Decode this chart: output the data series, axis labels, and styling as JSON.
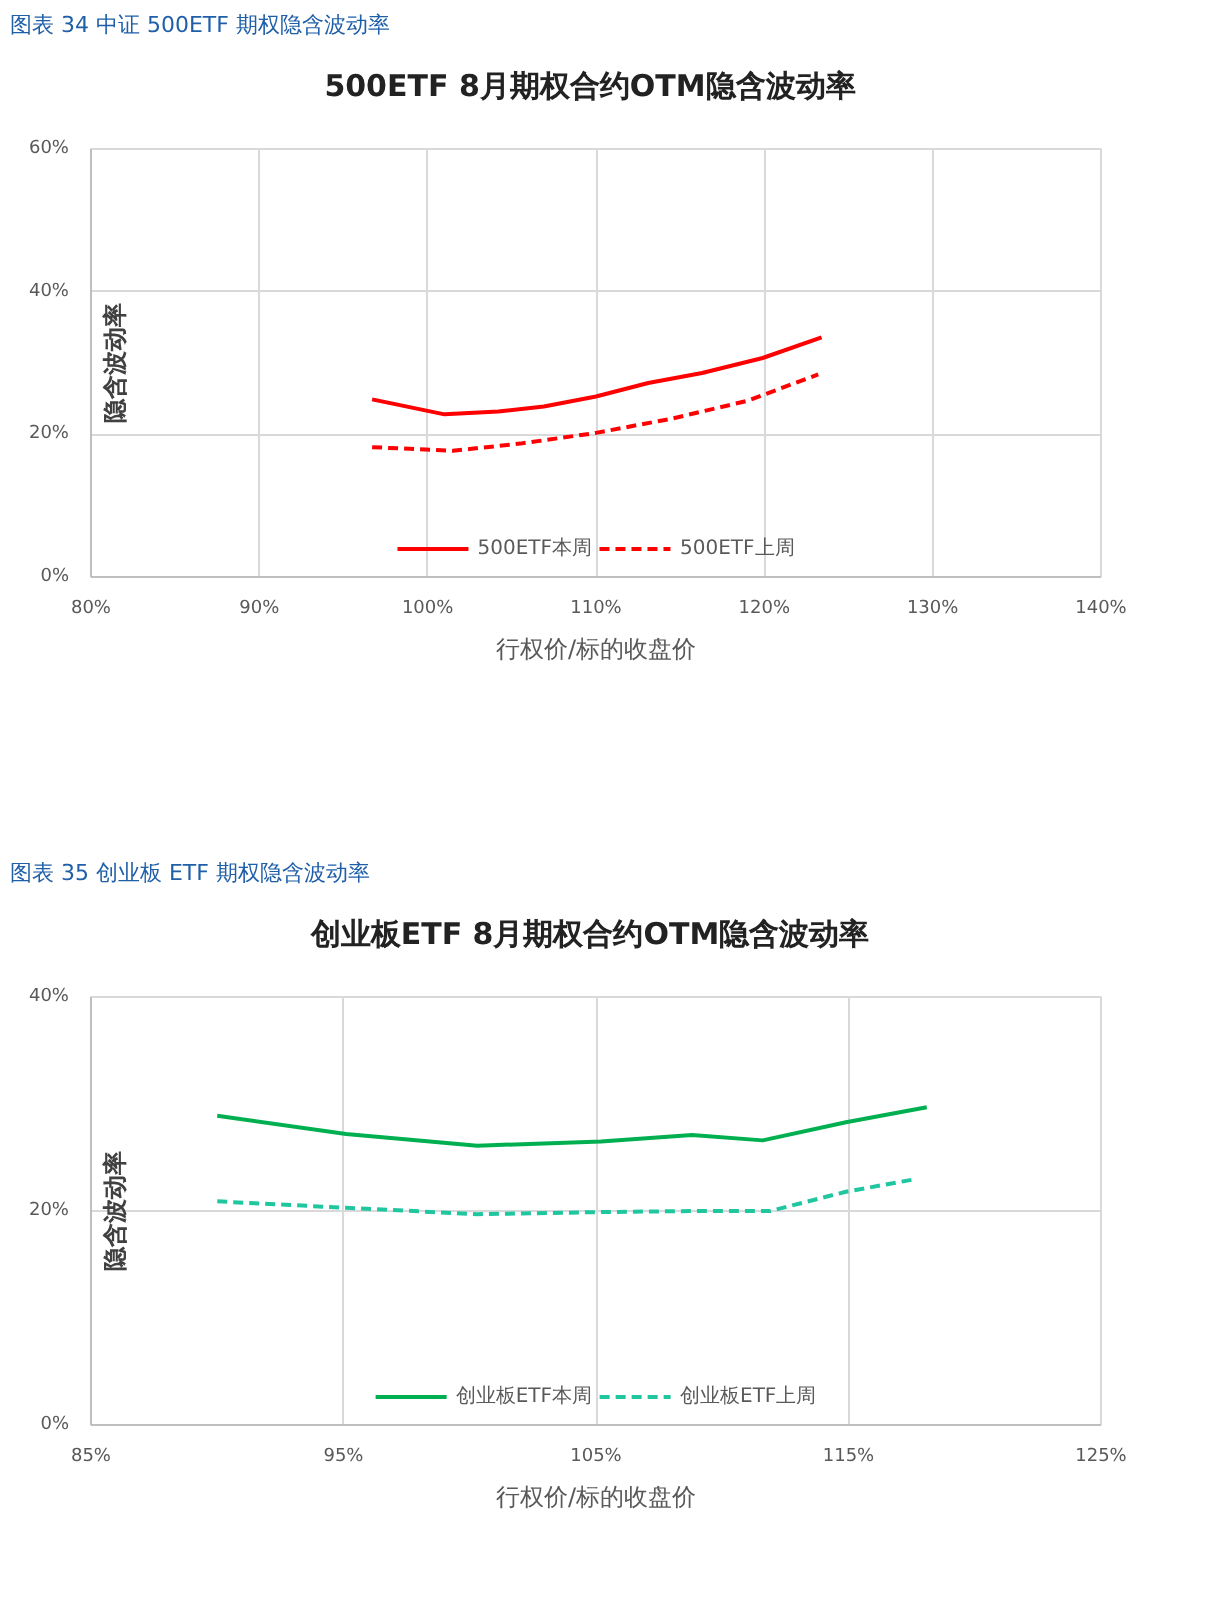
{
  "chart_data": [
    {
      "type": "line",
      "subtitle": "图表 34  中证 500ETF 期权隐含波动率",
      "title": "500ETF 8月期权合约OTM隐含波动率",
      "xlabel": "行权价/标的收盘价",
      "ylabel": "隐含波动率",
      "xlim": [
        80,
        140
      ],
      "xticks": [
        {
          "value": 80,
          "label": "80%"
        },
        {
          "value": 90,
          "label": "90%"
        },
        {
          "value": 100,
          "label": "100%"
        },
        {
          "value": 110,
          "label": "110%"
        },
        {
          "value": 120,
          "label": "120%"
        },
        {
          "value": 130,
          "label": "130%"
        },
        {
          "value": 140,
          "label": "140%"
        }
      ],
      "ylim": [
        0,
        60
      ],
      "yticks": [
        {
          "value": 0,
          "label": "0%"
        },
        {
          "value": 20,
          "label": "20%"
        },
        {
          "value": 40,
          "label": "40%"
        },
        {
          "value": 60,
          "label": "60%"
        }
      ],
      "grid": true,
      "legend": "bottom",
      "series": [
        {
          "name": "500ETF本周",
          "color": "#ff0000",
          "line_style": "solid",
          "x": [
            96.7,
            101,
            104.2,
            106.9,
            110,
            113.1,
            116.3,
            119.9,
            123.4
          ],
          "values": [
            24.9,
            22.8,
            23.2,
            23.9,
            25.3,
            27.2,
            28.6,
            30.7,
            33.6
          ]
        },
        {
          "name": "500ETF上周",
          "color": "#ff0000",
          "line_style": "dashed",
          "x": [
            96.7,
            101.5,
            105.5,
            110,
            114.5,
            119,
            123.2
          ],
          "values": [
            18.2,
            17.7,
            18.7,
            20.2,
            22.2,
            24.7,
            28.4
          ]
        }
      ]
    },
    {
      "type": "line",
      "subtitle": "图表 35  创业板 ETF 期权隐含波动率",
      "title": "创业板ETF 8月期权合约OTM隐含波动率",
      "xlabel": "行权价/标的收盘价",
      "ylabel": "隐含波动率",
      "xlim": [
        85,
        125
      ],
      "xticks": [
        {
          "value": 85,
          "label": "85%"
        },
        {
          "value": 95,
          "label": "95%"
        },
        {
          "value": 105,
          "label": "105%"
        },
        {
          "value": 115,
          "label": "115%"
        },
        {
          "value": 125,
          "label": "125%"
        }
      ],
      "ylim": [
        0,
        40
      ],
      "yticks": [
        {
          "value": 0,
          "label": "0%"
        },
        {
          "value": 20,
          "label": "20%"
        },
        {
          "value": 40,
          "label": "40%"
        }
      ],
      "grid": true,
      "legend": "bottom",
      "series": [
        {
          "name": "创业板ETF本周",
          "color": "#00b050",
          "line_style": "solid",
          "x": [
            90,
            95.1,
            100.3,
            105.2,
            108.8,
            111.6,
            114.9,
            118.1
          ],
          "values": [
            28.9,
            27.2,
            26.1,
            26.5,
            27.1,
            26.6,
            28.3,
            29.7
          ]
        },
        {
          "name": "创业板ETF上周",
          "color": "#1fc6a0",
          "line_style": "dashed",
          "x": [
            90,
            95.1,
            100.3,
            105.2,
            108.8,
            111.9,
            114.9,
            117.7
          ],
          "values": [
            20.9,
            20.3,
            19.7,
            19.9,
            20.0,
            20.0,
            21.8,
            23.0
          ]
        }
      ]
    }
  ]
}
